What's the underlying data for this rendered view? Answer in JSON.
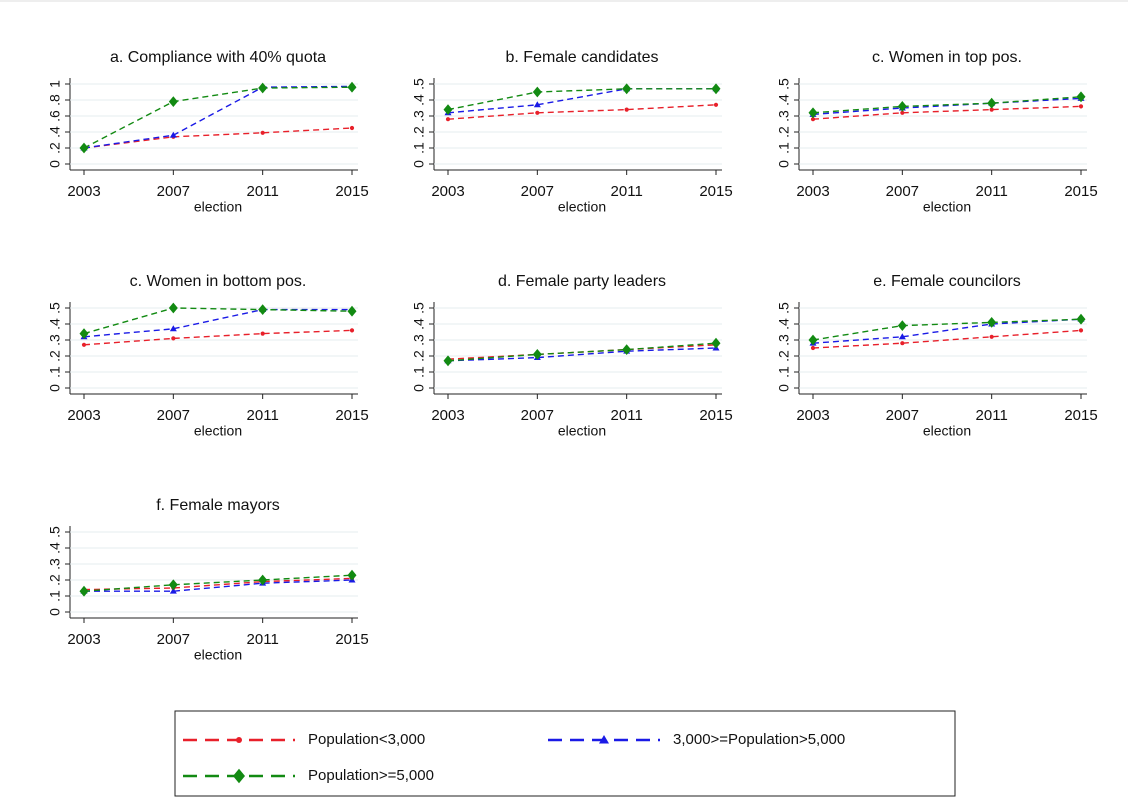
{
  "chart_data": [
    {
      "type": "line",
      "title": "a. Compliance with 40% quota",
      "categories": [
        "2003",
        "2007",
        "2011",
        "2015"
      ],
      "xlabel": "election",
      "ylim": [
        0,
        1
      ],
      "yticks": [
        0,
        {
          "value": 0.2,
          "label": ".2"
        },
        {
          "value": 0.4,
          "label": ".4"
        },
        {
          "value": 0.6,
          "label": ".6"
        },
        {
          "value": 0.8,
          "label": ".8"
        },
        1
      ],
      "series": [
        {
          "values": [
            0.2,
            0.34,
            0.39,
            0.45
          ]
        },
        {
          "values": [
            0.2,
            0.36,
            0.96,
            0.97
          ]
        },
        {
          "values": [
            0.2,
            0.78,
            0.95,
            0.96
          ]
        }
      ]
    },
    {
      "type": "line",
      "title": "b. Female candidates",
      "categories": [
        "2003",
        "2007",
        "2011",
        "2015"
      ],
      "xlabel": "election",
      "ylim": [
        0,
        0.5
      ],
      "yticks": [
        0,
        {
          "value": 0.1,
          "label": ".1"
        },
        {
          "value": 0.2,
          "label": ".2"
        },
        {
          "value": 0.3,
          "label": ".3"
        },
        {
          "value": 0.4,
          "label": ".4"
        },
        {
          "value": 0.5,
          "label": ".5"
        }
      ],
      "series": [
        {
          "values": [
            0.28,
            0.32,
            0.34,
            0.37
          ]
        },
        {
          "values": [
            0.32,
            0.37,
            0.47,
            0.47
          ]
        },
        {
          "values": [
            0.34,
            0.45,
            0.47,
            0.47
          ]
        }
      ]
    },
    {
      "type": "line",
      "title": "c. Women in top pos.",
      "categories": [
        "2003",
        "2007",
        "2011",
        "2015"
      ],
      "xlabel": "election",
      "ylim": [
        0,
        0.5
      ],
      "yticks": [
        0,
        {
          "value": 0.1,
          "label": ".1"
        },
        {
          "value": 0.2,
          "label": ".2"
        },
        {
          "value": 0.3,
          "label": ".3"
        },
        {
          "value": 0.4,
          "label": ".4"
        },
        {
          "value": 0.5,
          "label": ".5"
        }
      ],
      "series": [
        {
          "values": [
            0.28,
            0.32,
            0.34,
            0.36
          ]
        },
        {
          "values": [
            0.31,
            0.35,
            0.38,
            0.41
          ]
        },
        {
          "values": [
            0.32,
            0.36,
            0.38,
            0.42
          ]
        }
      ]
    },
    {
      "type": "line",
      "title": "c. Women in bottom pos.",
      "categories": [
        "2003",
        "2007",
        "2011",
        "2015"
      ],
      "xlabel": "election",
      "ylim": [
        0,
        0.5
      ],
      "yticks": [
        0,
        {
          "value": 0.1,
          "label": ".1"
        },
        {
          "value": 0.2,
          "label": ".2"
        },
        {
          "value": 0.3,
          "label": ".3"
        },
        {
          "value": 0.4,
          "label": ".4"
        },
        {
          "value": 0.5,
          "label": ".5"
        }
      ],
      "series": [
        {
          "values": [
            0.27,
            0.31,
            0.34,
            0.36
          ]
        },
        {
          "values": [
            0.32,
            0.37,
            0.49,
            0.49
          ]
        },
        {
          "values": [
            0.34,
            0.5,
            0.49,
            0.48
          ]
        }
      ]
    },
    {
      "type": "line",
      "title": "d. Female party leaders",
      "categories": [
        "2003",
        "2007",
        "2011",
        "2015"
      ],
      "xlabel": "election",
      "ylim": [
        0,
        0.5
      ],
      "yticks": [
        0,
        {
          "value": 0.1,
          "label": ".1"
        },
        {
          "value": 0.2,
          "label": ".2"
        },
        {
          "value": 0.3,
          "label": ".3"
        },
        {
          "value": 0.4,
          "label": ".4"
        },
        {
          "value": 0.5,
          "label": ".5"
        }
      ],
      "series": [
        {
          "values": [
            0.18,
            0.21,
            0.24,
            0.27
          ]
        },
        {
          "values": [
            0.17,
            0.19,
            0.23,
            0.25
          ]
        },
        {
          "values": [
            0.17,
            0.21,
            0.24,
            0.28
          ]
        }
      ]
    },
    {
      "type": "line",
      "title": "e. Female councilors",
      "categories": [
        "2003",
        "2007",
        "2011",
        "2015"
      ],
      "xlabel": "election",
      "ylim": [
        0,
        0.5
      ],
      "yticks": [
        0,
        {
          "value": 0.1,
          "label": ".1"
        },
        {
          "value": 0.2,
          "label": ".2"
        },
        {
          "value": 0.3,
          "label": ".3"
        },
        {
          "value": 0.4,
          "label": ".4"
        },
        {
          "value": 0.5,
          "label": ".5"
        }
      ],
      "series": [
        {
          "values": [
            0.25,
            0.28,
            0.32,
            0.36
          ]
        },
        {
          "values": [
            0.28,
            0.32,
            0.4,
            0.43
          ]
        },
        {
          "values": [
            0.3,
            0.39,
            0.41,
            0.43
          ]
        }
      ]
    },
    {
      "type": "line",
      "title": "f. Female mayors",
      "categories": [
        "2003",
        "2007",
        "2011",
        "2015"
      ],
      "xlabel": "election",
      "ylim": [
        0,
        0.5
      ],
      "yticks": [
        0,
        {
          "value": 0.1,
          "label": ".1"
        },
        {
          "value": 0.2,
          "label": ".2"
        },
        {
          "value": 0.3,
          "label": ".3"
        },
        {
          "value": 0.4,
          "label": ".4"
        },
        {
          "value": 0.5,
          "label": ".5"
        }
      ],
      "series": [
        {
          "values": [
            0.14,
            0.15,
            0.19,
            0.21
          ]
        },
        {
          "values": [
            0.13,
            0.13,
            0.18,
            0.2
          ]
        },
        {
          "values": [
            0.13,
            0.17,
            0.2,
            0.23
          ]
        }
      ]
    }
  ],
  "legend": {
    "items": [
      {
        "name": "Population<3,000",
        "color": "#e8202a",
        "marker": "circle"
      },
      {
        "name": "3,000>=Population>5,000",
        "color": "#1a1ae6",
        "marker": "triangle"
      },
      {
        "name": "Population>=5,000",
        "color": "#128a12",
        "marker": "diamond"
      }
    ]
  }
}
